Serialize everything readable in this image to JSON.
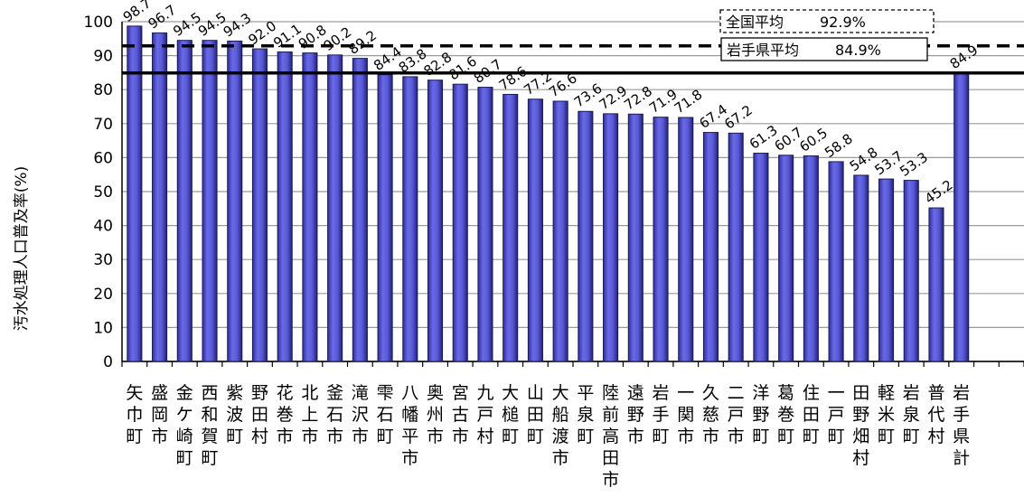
{
  "chart_data": {
    "type": "bar",
    "ylabel": "汚水処理人口普及率(%)",
    "ylim": [
      0,
      100
    ],
    "yticks": [
      0,
      10,
      20,
      30,
      40,
      50,
      60,
      70,
      80,
      90,
      100
    ],
    "grid": true,
    "categories": [
      "矢巾町",
      "盛岡市",
      "金ケ崎町",
      "西和賀町",
      "紫波町",
      "野田村",
      "花巻市",
      "北上市",
      "釜石市",
      "滝沢市",
      "雫石町",
      "八幡平市",
      "奥州市",
      "宮古市",
      "九戸村",
      "大槌町",
      "山田町",
      "大船渡市",
      "平泉町",
      "陸前高田市",
      "遠野市",
      "岩手町",
      "一関市",
      "久慈市",
      "二戸市",
      "洋野町",
      "葛巻町",
      "住田町",
      "一戸町",
      "田野畑村",
      "軽米町",
      "岩泉町",
      "普代村",
      "岩手県計"
    ],
    "values": [
      98.7,
      96.7,
      94.5,
      94.5,
      94.3,
      92.0,
      91.1,
      90.8,
      90.2,
      89.2,
      84.4,
      83.8,
      82.8,
      81.6,
      80.7,
      78.6,
      77.2,
      76.6,
      73.6,
      72.9,
      72.8,
      71.9,
      71.8,
      67.4,
      67.2,
      61.3,
      60.7,
      60.5,
      58.8,
      54.8,
      53.7,
      53.3,
      45.2,
      84.9
    ],
    "reference_lines": [
      {
        "label": "全国平均",
        "value": 92.9,
        "value_text": "92.9%",
        "style": "dashed"
      },
      {
        "label": "岩手県平均",
        "value": 84.9,
        "value_text": "84.9%",
        "style": "solid"
      }
    ],
    "bar_color": "#4b4bcc"
  }
}
